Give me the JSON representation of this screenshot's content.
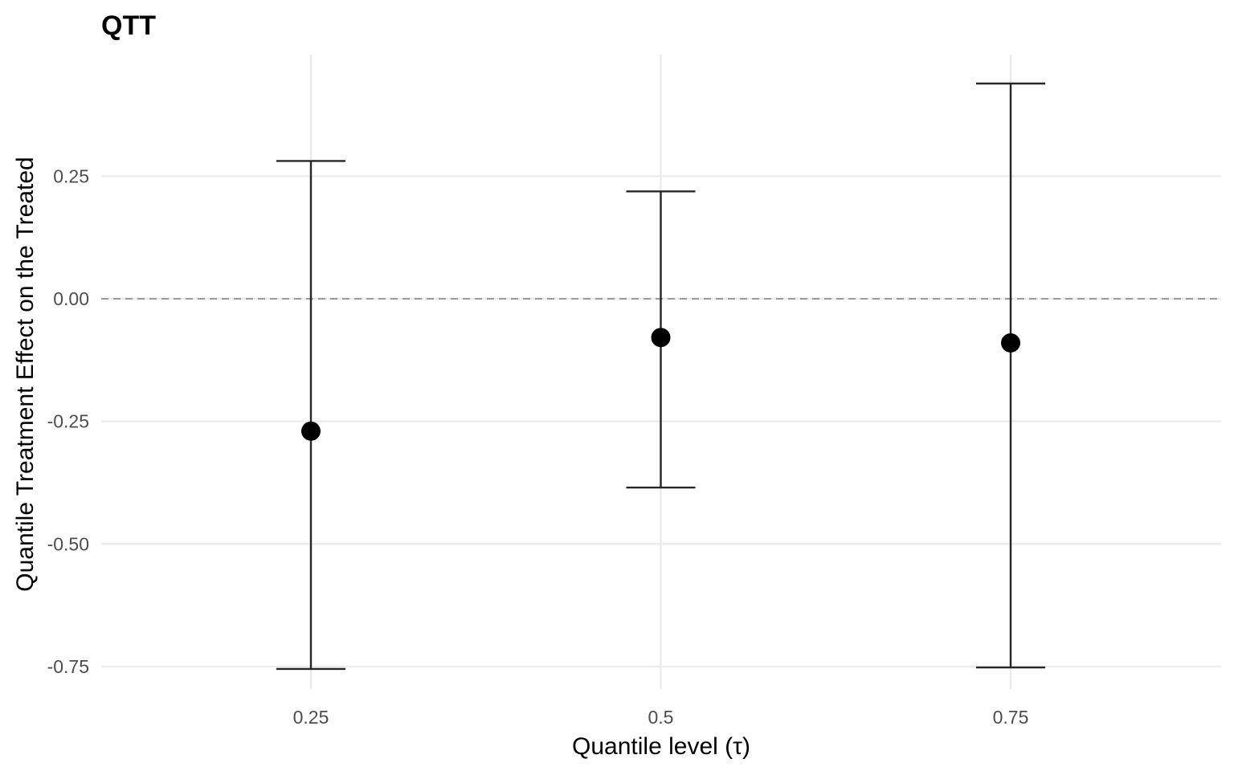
{
  "chart_data": {
    "type": "scatter",
    "title": "QTT",
    "xlabel": "Quantile level (τ)",
    "ylabel": "Quantile Treatment Effect on the Treated",
    "categories": [
      "0.25",
      "0.5",
      "0.75"
    ],
    "series": [
      {
        "values": [
          -0.27,
          -0.079,
          -0.09
        ],
        "lower": [
          -0.755,
          -0.385,
          -0.752
        ],
        "upper": [
          0.281,
          0.219,
          0.439
        ]
      }
    ],
    "y_ticks": [
      {
        "value": 0.25,
        "label": "0.25"
      },
      {
        "value": 0.0,
        "label": "0.00"
      },
      {
        "value": -0.25,
        "label": "-0.25"
      },
      {
        "value": -0.5,
        "label": "-0.50"
      },
      {
        "value": -0.75,
        "label": "-0.75"
      }
    ],
    "ylim": [
      -0.78,
      0.5
    ],
    "reference_line": {
      "value": 0,
      "style": "dashed"
    },
    "grid": true,
    "legend": "none",
    "colors": {
      "point": "#000000",
      "errorbar": "#262626",
      "grid": "#ebebeb",
      "reference": "#808080"
    }
  }
}
